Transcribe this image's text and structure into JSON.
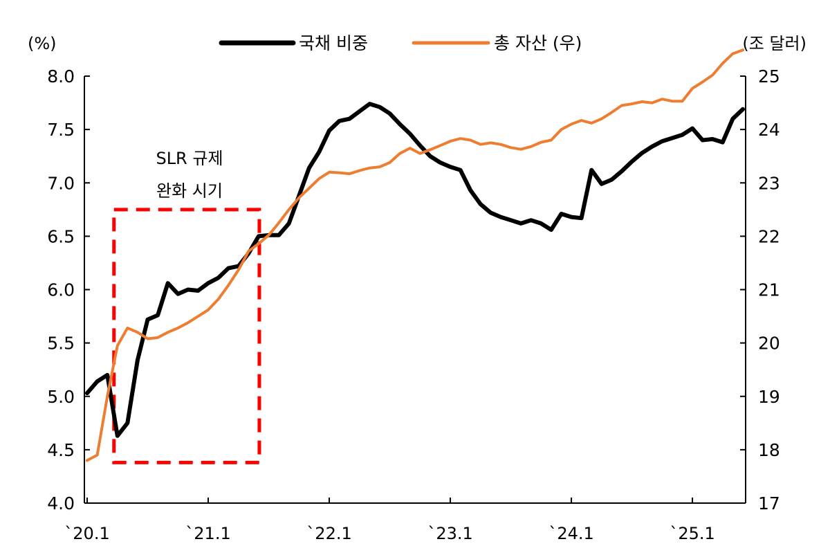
{
  "chart_data": {
    "type": "line",
    "left_unit": "(%)",
    "right_unit": "(조 달러)",
    "left_axis": {
      "min": 4.0,
      "max": 8.0,
      "ticks": [
        "4.0",
        "4.5",
        "5.0",
        "5.5",
        "6.0",
        "6.5",
        "7.0",
        "7.5",
        "8.0"
      ]
    },
    "right_axis": {
      "min": 17,
      "max": 25,
      "ticks": [
        "17",
        "18",
        "19",
        "20",
        "21",
        "22",
        "23",
        "24",
        "25"
      ]
    },
    "x_axis": {
      "start": "2020-01",
      "end": "2025-07",
      "tick_labels": [
        "`20.1",
        "`21.1",
        "`22.1",
        "`23.1",
        "`24.1",
        "`25.1"
      ]
    },
    "series": [
      {
        "name": "국채 비중",
        "axis": "left",
        "color": "#000000",
        "values": [
          5.03,
          5.14,
          5.2,
          4.63,
          4.75,
          5.34,
          5.72,
          5.76,
          6.06,
          5.96,
          6.0,
          5.99,
          6.06,
          6.11,
          6.2,
          6.22,
          6.34,
          6.5,
          6.51,
          6.51,
          6.62,
          6.88,
          7.14,
          7.29,
          7.49,
          7.58,
          7.6,
          7.67,
          7.74,
          7.71,
          7.65,
          7.55,
          7.46,
          7.35,
          7.25,
          7.19,
          7.15,
          7.12,
          6.93,
          6.8,
          6.72,
          6.68,
          6.65,
          6.62,
          6.65,
          6.62,
          6.56,
          6.71,
          6.68,
          6.67,
          7.12,
          6.99,
          7.03,
          7.11,
          7.2,
          7.28,
          7.34,
          7.39,
          7.42,
          7.45,
          7.51,
          7.4,
          7.41,
          7.38,
          7.6,
          7.69
        ]
      },
      {
        "name": "총 자산 (우)",
        "axis": "right",
        "color": "#ED7D31",
        "values": [
          17.8,
          17.9,
          19.0,
          19.95,
          20.28,
          20.2,
          20.08,
          20.1,
          20.2,
          20.28,
          20.38,
          20.5,
          20.62,
          20.82,
          21.08,
          21.37,
          21.72,
          21.86,
          22.02,
          22.25,
          22.5,
          22.72,
          22.9,
          23.08,
          23.2,
          23.19,
          23.17,
          23.23,
          23.28,
          23.3,
          23.38,
          23.55,
          23.65,
          23.55,
          23.62,
          23.7,
          23.78,
          23.83,
          23.8,
          23.72,
          23.75,
          23.72,
          23.66,
          23.63,
          23.68,
          23.76,
          23.8,
          24.0,
          24.1,
          24.17,
          24.12,
          24.2,
          24.32,
          24.45,
          24.48,
          24.52,
          24.5,
          24.57,
          24.53,
          24.53,
          24.77,
          24.89,
          25.02,
          25.24,
          25.42,
          25.49
        ]
      }
    ],
    "highlight": {
      "label_line1": "SLR 규제",
      "label_line2": "완화 시기",
      "from_index": 3,
      "to_index": 17,
      "left_range": [
        4.38,
        6.75
      ],
      "color": "#FF0000"
    }
  }
}
